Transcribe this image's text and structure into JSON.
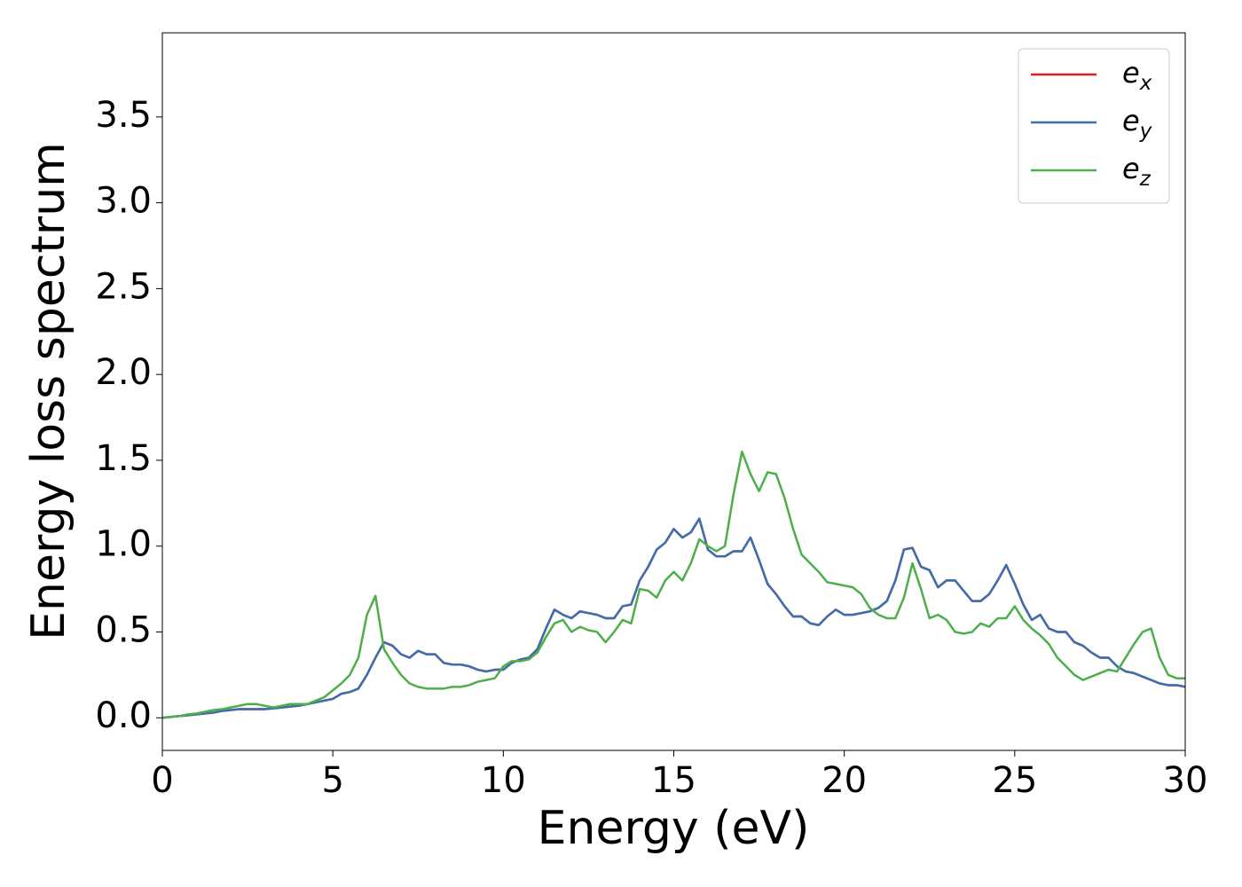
{
  "chart_data": {
    "type": "line",
    "xlabel": "Energy (eV)",
    "ylabel": "Energy loss spectrum",
    "xlim": [
      0,
      30
    ],
    "ylim": [
      -0.19,
      3.99
    ],
    "xticks": [
      0,
      5,
      10,
      15,
      20,
      25,
      30
    ],
    "yticks": [
      {
        "value": 0,
        "label": "0.0"
      },
      0.5,
      {
        "value": 1,
        "label": "1.0"
      },
      1.5,
      {
        "value": 2,
        "label": "2.0"
      },
      2.5,
      {
        "value": 3,
        "label": "3.0"
      },
      3.5
    ],
    "legend": "upper right",
    "x": [
      0,
      0.25,
      0.5,
      0.75,
      1,
      1.25,
      1.5,
      1.75,
      2,
      2.25,
      2.5,
      2.75,
      3,
      3.25,
      3.5,
      3.75,
      4,
      4.25,
      4.5,
      4.75,
      5,
      5.25,
      5.5,
      5.75,
      6,
      6.25,
      6.5,
      6.75,
      7,
      7.25,
      7.5,
      7.75,
      8,
      8.25,
      8.5,
      8.75,
      9,
      9.25,
      9.5,
      9.75,
      10,
      10.25,
      10.5,
      10.75,
      11,
      11.25,
      11.5,
      11.75,
      12,
      12.25,
      12.5,
      12.75,
      13,
      13.25,
      13.5,
      13.75,
      14,
      14.25,
      14.5,
      14.75,
      15,
      15.25,
      15.5,
      15.75,
      16,
      16.25,
      16.5,
      16.75,
      17,
      17.25,
      17.5,
      17.75,
      18,
      18.25,
      18.5,
      18.75,
      19,
      19.25,
      19.5,
      19.75,
      20,
      20.25,
      20.5,
      20.75,
      21,
      21.25,
      21.5,
      21.75,
      22,
      22.25,
      22.5,
      22.75,
      23,
      23.25,
      23.5,
      23.75,
      24,
      24.25,
      24.5,
      24.75,
      25,
      25.25,
      25.5,
      25.75,
      26,
      26.25,
      26.5,
      26.75,
      27,
      27.25,
      27.5,
      27.75,
      28,
      28.25,
      28.5,
      28.75,
      29,
      29.25,
      29.5,
      29.75,
      30
    ],
    "series": [
      {
        "name": "e_x",
        "color": "#e41a1c",
        "values": [
          0,
          0.005,
          0.01,
          0.015,
          0.02,
          0.025,
          0.03,
          0.04,
          0.045,
          0.05,
          0.05,
          0.05,
          0.05,
          0.055,
          0.06,
          0.065,
          0.07,
          0.08,
          0.09,
          0.1,
          0.11,
          0.14,
          0.15,
          0.17,
          0.25,
          0.35,
          0.44,
          0.42,
          0.37,
          0.35,
          0.39,
          0.37,
          0.37,
          0.32,
          0.31,
          0.31,
          0.3,
          0.28,
          0.27,
          0.28,
          0.28,
          0.32,
          0.34,
          0.35,
          0.4,
          0.52,
          0.63,
          0.6,
          0.58,
          0.62,
          0.61,
          0.6,
          0.58,
          0.58,
          0.65,
          0.66,
          0.8,
          0.88,
          0.98,
          1.02,
          1.1,
          1.05,
          1.08,
          1.16,
          0.98,
          0.94,
          0.94,
          0.97,
          0.97,
          1.05,
          0.92,
          0.78,
          0.72,
          0.65,
          0.59,
          0.59,
          0.55,
          0.54,
          0.59,
          0.63,
          0.6,
          0.6,
          0.61,
          0.62,
          0.64,
          0.68,
          0.8,
          0.98,
          0.99,
          0.88,
          0.86,
          0.76,
          0.8,
          0.8,
          0.74,
          0.68,
          0.68,
          0.72,
          0.8,
          0.89,
          0.78,
          0.66,
          0.57,
          0.6,
          0.52,
          0.5,
          0.5,
          0.44,
          0.42,
          0.38,
          0.35,
          0.35,
          0.3,
          0.27,
          0.26,
          0.24,
          0.22,
          0.2,
          0.19,
          0.19,
          0.18
        ]
      },
      {
        "name": "e_y",
        "color": "#3a6fb0",
        "values": [
          0,
          0.005,
          0.01,
          0.015,
          0.02,
          0.025,
          0.03,
          0.04,
          0.045,
          0.05,
          0.05,
          0.05,
          0.05,
          0.055,
          0.06,
          0.065,
          0.07,
          0.08,
          0.09,
          0.1,
          0.11,
          0.14,
          0.15,
          0.17,
          0.25,
          0.35,
          0.44,
          0.42,
          0.37,
          0.35,
          0.39,
          0.37,
          0.37,
          0.32,
          0.31,
          0.31,
          0.3,
          0.28,
          0.27,
          0.28,
          0.28,
          0.32,
          0.34,
          0.35,
          0.4,
          0.52,
          0.63,
          0.6,
          0.58,
          0.62,
          0.61,
          0.6,
          0.58,
          0.58,
          0.65,
          0.66,
          0.8,
          0.88,
          0.98,
          1.02,
          1.1,
          1.05,
          1.08,
          1.16,
          0.98,
          0.94,
          0.94,
          0.97,
          0.97,
          1.05,
          0.92,
          0.78,
          0.72,
          0.65,
          0.59,
          0.59,
          0.55,
          0.54,
          0.59,
          0.63,
          0.6,
          0.6,
          0.61,
          0.62,
          0.64,
          0.68,
          0.8,
          0.98,
          0.99,
          0.88,
          0.86,
          0.76,
          0.8,
          0.8,
          0.74,
          0.68,
          0.68,
          0.72,
          0.8,
          0.89,
          0.78,
          0.66,
          0.57,
          0.6,
          0.52,
          0.5,
          0.5,
          0.44,
          0.42,
          0.38,
          0.35,
          0.35,
          0.3,
          0.27,
          0.26,
          0.24,
          0.22,
          0.2,
          0.19,
          0.19,
          0.18
        ]
      },
      {
        "name": "e_z",
        "color": "#4daf4a",
        "values": [
          0,
          0.005,
          0.01,
          0.02,
          0.025,
          0.035,
          0.045,
          0.05,
          0.06,
          0.07,
          0.08,
          0.08,
          0.07,
          0.06,
          0.07,
          0.08,
          0.08,
          0.08,
          0.1,
          0.12,
          0.16,
          0.2,
          0.25,
          0.35,
          0.6,
          0.71,
          0.4,
          0.32,
          0.25,
          0.2,
          0.18,
          0.17,
          0.17,
          0.17,
          0.18,
          0.18,
          0.19,
          0.21,
          0.22,
          0.23,
          0.3,
          0.33,
          0.33,
          0.34,
          0.38,
          0.47,
          0.55,
          0.57,
          0.5,
          0.53,
          0.51,
          0.5,
          0.44,
          0.5,
          0.57,
          0.55,
          0.75,
          0.74,
          0.7,
          0.8,
          0.85,
          0.8,
          0.9,
          1.04,
          1.0,
          0.97,
          1.0,
          1.3,
          1.55,
          1.42,
          1.32,
          1.43,
          1.42,
          1.28,
          1.1,
          0.95,
          0.9,
          0.85,
          0.79,
          0.78,
          0.77,
          0.76,
          0.72,
          0.64,
          0.6,
          0.58,
          0.58,
          0.7,
          0.9,
          0.75,
          0.58,
          0.6,
          0.57,
          0.5,
          0.49,
          0.5,
          0.55,
          0.53,
          0.58,
          0.58,
          0.65,
          0.57,
          0.52,
          0.48,
          0.43,
          0.35,
          0.3,
          0.25,
          0.22,
          0.24,
          0.26,
          0.28,
          0.27,
          0.35,
          0.43,
          0.5,
          0.52,
          0.35,
          0.25,
          0.23,
          0.23
        ]
      }
    ]
  }
}
